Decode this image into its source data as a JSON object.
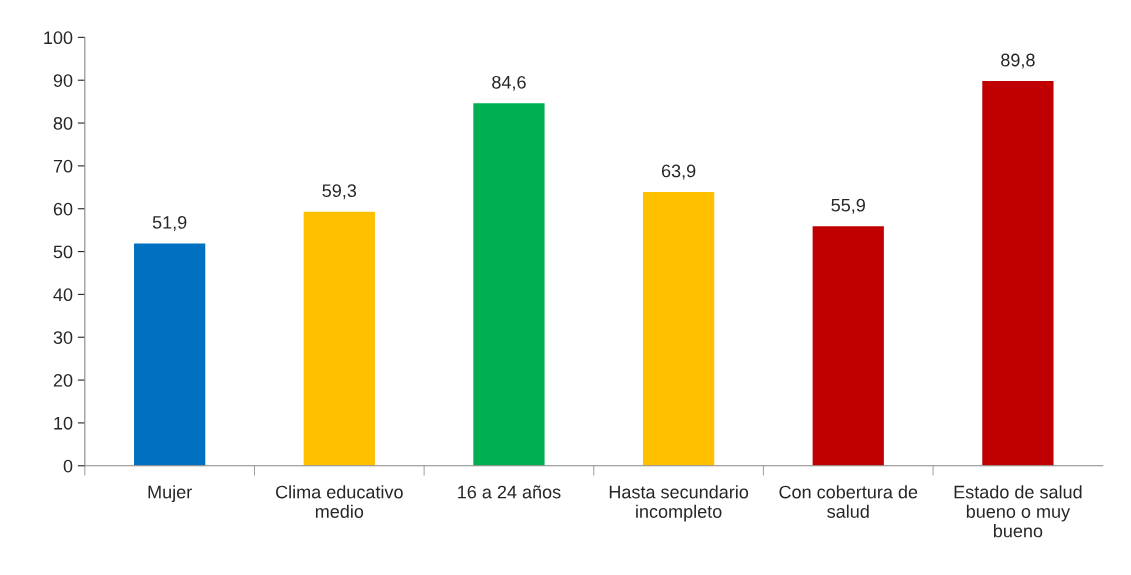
{
  "chart_data": {
    "type": "bar",
    "categories": [
      "Mujer",
      "Clima educativo medio",
      "16 a 24 años",
      "Hasta secundario incompleto",
      "Con cobertura de salud",
      "Estado de salud bueno o muy bueno"
    ],
    "values": [
      51.9,
      59.3,
      84.6,
      63.9,
      55.9,
      89.8
    ],
    "value_labels": [
      "51,9",
      "59,3",
      "84,6",
      "63,9",
      "55,9",
      "89,8"
    ],
    "colors": [
      "#0070c0",
      "#ffc000",
      "#00b050",
      "#ffc000",
      "#c00000",
      "#c00000"
    ],
    "ylim": [
      0,
      100
    ],
    "yticks": [
      0,
      10,
      20,
      30,
      40,
      50,
      60,
      70,
      80,
      90,
      100
    ],
    "grid": false,
    "legend": false
  }
}
